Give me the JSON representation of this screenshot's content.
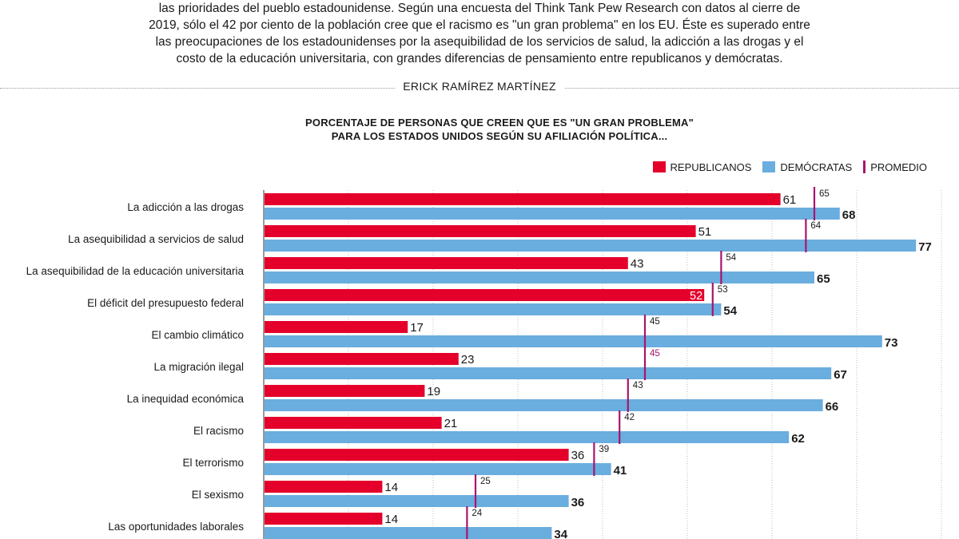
{
  "article": {
    "intro_lines": [
      "las prioridades del pueblo estadounidense. Según una encuesta del Think Tank Pew Research con datos al cierre de",
      "2019, sólo el 42 por ciento de la población cree que el racismo es \"un gran problema\" en los EU. Éste es superado entre",
      "las preocupaciones de los estadounidenses por la asequibilidad de los servicios de salud, la adicción a las drogas y el",
      "costo de la educación universitaria, con grandes diferencias de pensamiento entre republicanos y demócratas."
    ],
    "byline": "ERICK RAMÍREZ MARTÍNEZ"
  },
  "chart_data": {
    "type": "bar",
    "orientation": "horizontal",
    "title_lines": [
      "PORCENTAJE DE PERSONAS QUE CREEN QUE ES \"UN GRAN PROBLEMA\"",
      "PARA LOS ESTADOS UNIDOS SEGÚN SU AFILIACIÓN POLÍTICA..."
    ],
    "legend": [
      "REPUBLICANOS",
      "DEMÓCRATAS",
      "PROMEDIO"
    ],
    "legend_position": "top-right",
    "categories": [
      "La adicción a las drogas",
      "La asequibilidad a servicios de salud",
      "La asequibilidad de la educación universitaria",
      "El déficit del presupuesto federal",
      "El cambio climático",
      "La migración ilegal",
      "La inequidad económica",
      "El racismo",
      "El terrorismo",
      "El sexismo",
      "Las oportunidades laborales"
    ],
    "series": [
      {
        "name": "REPUBLICANOS",
        "values": [
          61,
          51,
          43,
          52,
          17,
          23,
          19,
          21,
          36,
          14,
          14
        ]
      },
      {
        "name": "DEMÓCRATAS",
        "values": [
          68,
          77,
          65,
          54,
          73,
          67,
          66,
          62,
          41,
          36,
          34
        ]
      },
      {
        "name": "PROMEDIO",
        "values": [
          65,
          64,
          54,
          53,
          45,
          45,
          43,
          42,
          39,
          25,
          24
        ]
      }
    ],
    "xlim": [
      0,
      80
    ],
    "grid": true,
    "colors": {
      "republicanos": "#e4002b",
      "democratas": "#6aaddf",
      "promedio": "#a8146c"
    }
  }
}
